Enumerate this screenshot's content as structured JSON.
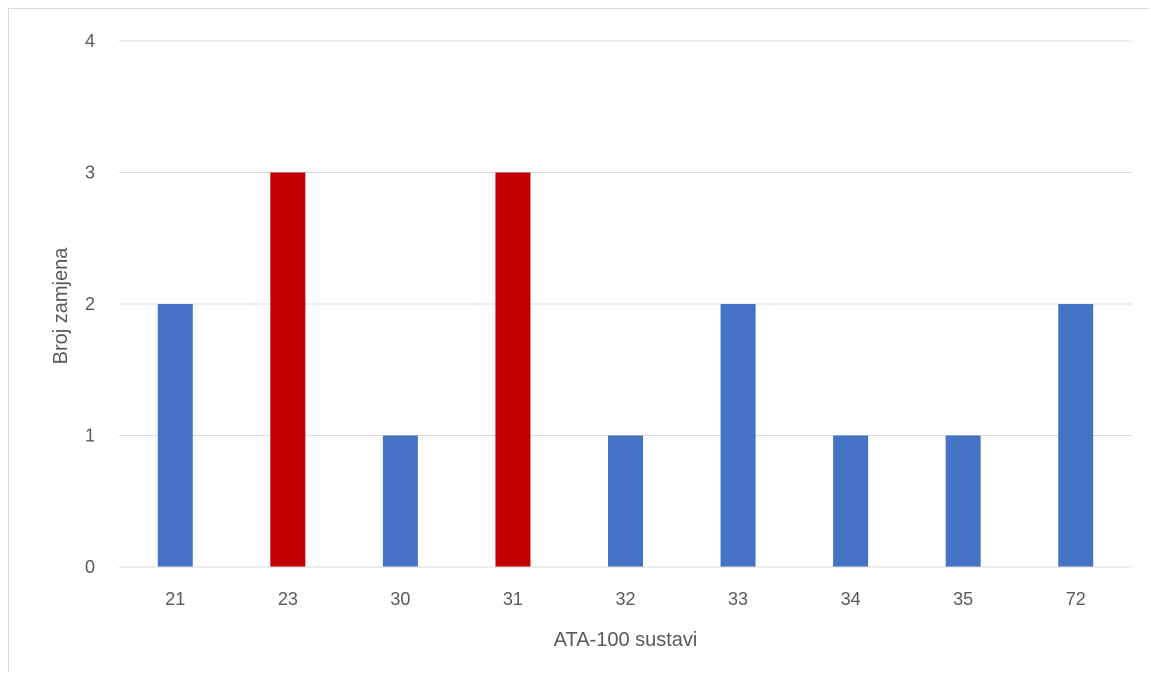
{
  "chart_data": {
    "type": "bar",
    "categories": [
      "21",
      "23",
      "30",
      "31",
      "32",
      "33",
      "34",
      "35",
      "72"
    ],
    "values": [
      2,
      3,
      1,
      3,
      1,
      2,
      1,
      1,
      2
    ],
    "highlighted_categories": [
      "23",
      "31"
    ],
    "title": "",
    "xlabel": "ATA-100 sustavi",
    "ylabel": "Broj zamjena",
    "ylim": [
      0,
      4
    ],
    "yticks": [
      "0",
      "1",
      "2",
      "3",
      "4"
    ],
    "grid": true,
    "legend": "none",
    "colors": {
      "bar_default": "#4472c4",
      "bar_highlight": "#c00000",
      "gridline": "#d9d9d9",
      "axis_line": "#d9d9d9",
      "text": "#595959"
    }
  }
}
